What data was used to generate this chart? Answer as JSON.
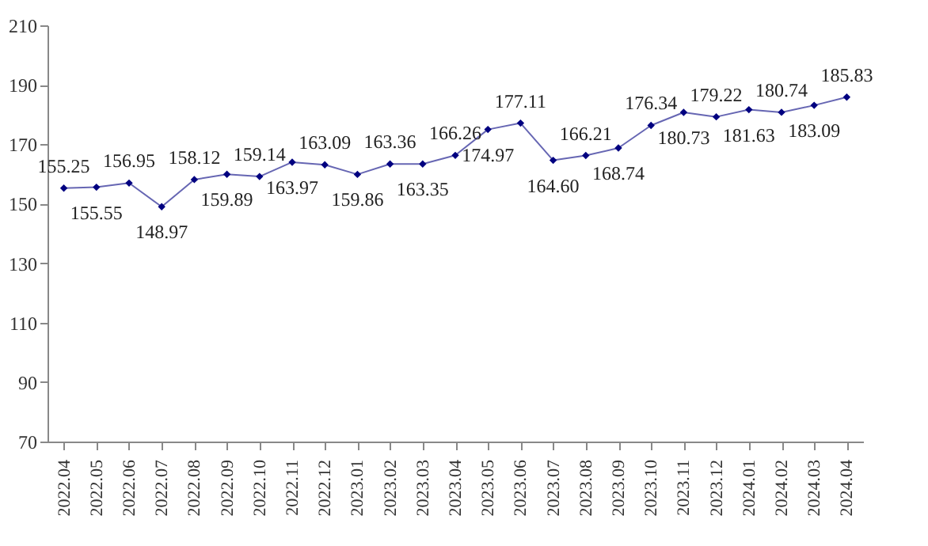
{
  "chart_data": {
    "type": "line",
    "categories": [
      "2022.04",
      "2022.05",
      "2022.06",
      "2022.07",
      "2022.08",
      "2022.09",
      "2022.10",
      "2022.11",
      "2022.12",
      "2023.01",
      "2023.02",
      "2023.03",
      "2023.04",
      "2023.05",
      "2023.06",
      "2023.07",
      "2023.08",
      "2023.09",
      "2023.10",
      "2023.11",
      "2023.12",
      "2024.01",
      "2024.02",
      "2024.03",
      "2024.04"
    ],
    "series": [
      {
        "color": "#000080",
        "values": [
          155.25,
          155.55,
          156.95,
          148.97,
          158.12,
          159.89,
          159.14,
          163.97,
          163.09,
          159.86,
          163.36,
          163.35,
          166.26,
          174.97,
          177.11,
          164.6,
          166.21,
          168.74,
          176.34,
          180.73,
          179.22,
          181.63,
          180.74,
          183.09,
          185.83
        ],
        "value_labels": [
          "155.25",
          "155.55",
          "156.95",
          "148.97",
          "158.12",
          "159.89",
          "159.14",
          "163.97",
          "163.09",
          "159.86",
          "163.36",
          "163.35",
          "166.26",
          "174.97",
          "177.11",
          "164.60",
          "166.21",
          "168.74",
          "176.34",
          "180.73",
          "179.22",
          "181.63",
          "180.74",
          "183.09",
          "185.83"
        ]
      }
    ],
    "ylim": [
      70,
      210
    ],
    "yticks": [
      70,
      90,
      110,
      130,
      150,
      170,
      190,
      210
    ],
    "grid": false,
    "marker": "diamond",
    "line_style": "solid"
  }
}
